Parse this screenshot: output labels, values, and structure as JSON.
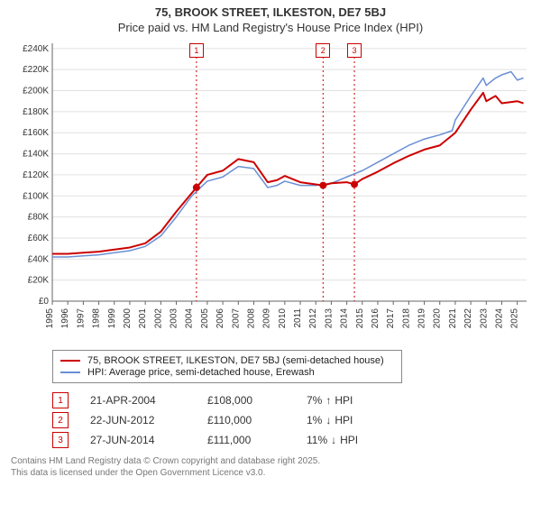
{
  "title": {
    "line1": "75, BROOK STREET, ILKESTON, DE7 5BJ",
    "line2": "Price paid vs. HM Land Registry's House Price Index (HPI)"
  },
  "chart": {
    "type": "line",
    "background_color": "#ffffff",
    "grid_color": "#e0e0e0",
    "axis_color": "#666666",
    "x": {
      "min": 1995,
      "max": 2025.6,
      "ticks": [
        1995,
        1996,
        1997,
        1998,
        1999,
        2000,
        2001,
        2002,
        2003,
        2004,
        2005,
        2006,
        2007,
        2008,
        2009,
        2010,
        2011,
        2012,
        2013,
        2014,
        2015,
        2016,
        2017,
        2018,
        2019,
        2020,
        2021,
        2022,
        2023,
        2024,
        2025
      ],
      "label_fontsize": 10,
      "label_rotation": -90
    },
    "y": {
      "min": 0,
      "max": 245000,
      "ticks": [
        0,
        20000,
        40000,
        60000,
        80000,
        100000,
        120000,
        140000,
        160000,
        180000,
        200000,
        220000,
        240000
      ],
      "tick_labels": [
        "£0",
        "£20K",
        "£40K",
        "£60K",
        "£80K",
        "£100K",
        "£120K",
        "£140K",
        "£160K",
        "£180K",
        "£200K",
        "£220K",
        "£240K"
      ],
      "label_fontsize": 10
    },
    "series": [
      {
        "name": "HPI: Average price, semi-detached house, Erewash",
        "color": "#6a8fd4",
        "line_width": 1.5,
        "points": [
          [
            1995,
            42000
          ],
          [
            1996,
            42000
          ],
          [
            1997,
            43000
          ],
          [
            1998,
            44000
          ],
          [
            1999,
            46000
          ],
          [
            2000,
            48000
          ],
          [
            2001,
            52000
          ],
          [
            2002,
            62000
          ],
          [
            2003,
            80000
          ],
          [
            2004,
            100000
          ],
          [
            2005,
            114000
          ],
          [
            2006,
            118000
          ],
          [
            2007,
            128000
          ],
          [
            2008,
            126000
          ],
          [
            2008.9,
            108000
          ],
          [
            2009.5,
            110000
          ],
          [
            2010,
            114000
          ],
          [
            2011,
            110000
          ],
          [
            2012,
            110000
          ],
          [
            2013,
            112000
          ],
          [
            2014,
            118000
          ],
          [
            2015,
            124000
          ],
          [
            2016,
            132000
          ],
          [
            2017,
            140000
          ],
          [
            2018,
            148000
          ],
          [
            2019,
            154000
          ],
          [
            2020,
            158000
          ],
          [
            2020.8,
            162000
          ],
          [
            2021,
            172000
          ],
          [
            2022,
            195000
          ],
          [
            2022.8,
            212000
          ],
          [
            2023,
            205000
          ],
          [
            2023.6,
            212000
          ],
          [
            2024,
            215000
          ],
          [
            2024.6,
            218000
          ],
          [
            2025,
            210000
          ],
          [
            2025.4,
            212000
          ]
        ]
      },
      {
        "name": "75, BROOK STREET, ILKESTON, DE7 5BJ (semi-detached house)",
        "color": "#cc0000",
        "line_width": 2,
        "points": [
          [
            1995,
            45000
          ],
          [
            1996,
            45000
          ],
          [
            1997,
            46000
          ],
          [
            1998,
            47000
          ],
          [
            1999,
            49000
          ],
          [
            2000,
            51000
          ],
          [
            2001,
            55000
          ],
          [
            2002,
            66000
          ],
          [
            2003,
            85000
          ],
          [
            2004.3,
            108000
          ],
          [
            2005,
            120000
          ],
          [
            2006,
            124000
          ],
          [
            2007,
            135000
          ],
          [
            2008,
            132000
          ],
          [
            2008.9,
            113000
          ],
          [
            2009.5,
            115000
          ],
          [
            2010,
            119000
          ],
          [
            2011,
            113000
          ],
          [
            2012.47,
            110000
          ],
          [
            2013,
            112000
          ],
          [
            2014,
            113000
          ],
          [
            2014.49,
            111000
          ],
          [
            2015,
            116000
          ],
          [
            2016,
            123000
          ],
          [
            2017,
            131000
          ],
          [
            2018,
            138000
          ],
          [
            2019,
            144000
          ],
          [
            2020,
            148000
          ],
          [
            2021,
            160000
          ],
          [
            2022,
            182000
          ],
          [
            2022.8,
            198000
          ],
          [
            2023,
            190000
          ],
          [
            2023.6,
            195000
          ],
          [
            2024,
            188000
          ],
          [
            2025,
            190000
          ],
          [
            2025.4,
            188000
          ]
        ]
      }
    ],
    "sale_markers": [
      {
        "n": "1",
        "x": 2004.3,
        "y": 108000
      },
      {
        "n": "2",
        "x": 2012.47,
        "y": 110000
      },
      {
        "n": "3",
        "x": 2014.49,
        "y": 111000
      }
    ],
    "marker_line_color": "#cc0000",
    "marker_line_dash": "2,3",
    "marker_dot_color": "#cc0000",
    "marker_dot_radius": 4
  },
  "legend": {
    "items": [
      {
        "color": "#cc0000",
        "label": "75, BROOK STREET, ILKESTON, DE7 5BJ (semi-detached house)"
      },
      {
        "color": "#6a8fd4",
        "label": "HPI: Average price, semi-detached house, Erewash"
      }
    ]
  },
  "sales": [
    {
      "n": "1",
      "date": "21-APR-2004",
      "price": "£108,000",
      "diff_pct": "7%",
      "diff_dir": "up",
      "diff_label": "HPI"
    },
    {
      "n": "2",
      "date": "22-JUN-2012",
      "price": "£110,000",
      "diff_pct": "1%",
      "diff_dir": "down",
      "diff_label": "HPI"
    },
    {
      "n": "3",
      "date": "27-JUN-2014",
      "price": "£111,000",
      "diff_pct": "11%",
      "diff_dir": "down",
      "diff_label": "HPI"
    }
  ],
  "footer": {
    "line1": "Contains HM Land Registry data © Crown copyright and database right 2025.",
    "line2": "This data is licensed under the Open Government Licence v3.0."
  },
  "arrows": {
    "up": "↑",
    "down": "↓"
  }
}
